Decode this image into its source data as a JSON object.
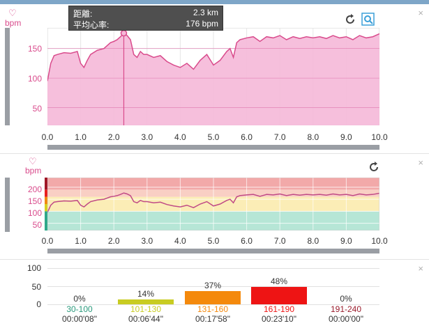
{
  "tooltip": {
    "distance_label": "距離:",
    "distance_value": "2.3 km",
    "hr_label": "平均心率:",
    "hr_value": "176 bpm"
  },
  "panel1": {
    "heart_icon": "heart-outline-icon",
    "unit": "bpm",
    "reset_icon": "rotate-reset-icon",
    "zoom_icon": "zoom-search-icon",
    "close": "×",
    "yticks": [
      "150",
      "100",
      "50"
    ],
    "xticks": [
      "0.0",
      "1.0",
      "2.0",
      "3.0",
      "4.0",
      "5.0",
      "6.0",
      "7.0",
      "8.0",
      "9.0",
      "10.0"
    ],
    "line_color": "#d94b8c",
    "fill_color": "#f5b8d8"
  },
  "panel2": {
    "heart_icon": "heart-outline-icon",
    "unit": "bpm",
    "reset_icon": "rotate-reset-icon",
    "close": "×",
    "yticks": [
      "200",
      "150",
      "100",
      "50"
    ],
    "xticks": [
      "0.0",
      "1.0",
      "2.0",
      "3.0",
      "4.0",
      "5.0",
      "6.0",
      "7.0",
      "8.0",
      "9.0",
      "10.0"
    ],
    "zone_colors": [
      "#b6e6d6",
      "#fbedb6",
      "#f9cfc4",
      "#f2a9a9"
    ]
  },
  "panel3": {
    "close": "×",
    "yticks": [
      "100",
      "50",
      "0"
    ],
    "zones": [
      {
        "range": "30-100",
        "percent": "0%",
        "time": "00:00'08\"",
        "pct_value": 0,
        "color": "#2a9a7c"
      },
      {
        "range": "101-130",
        "percent": "14%",
        "time": "00:06'44\"",
        "pct_value": 14,
        "color": "#c8cc22"
      },
      {
        "range": "131-160",
        "percent": "37%",
        "time": "00:17'58\"",
        "pct_value": 37,
        "color": "#f4890c"
      },
      {
        "range": "161-190",
        "percent": "48%",
        "time": "00:23'10\"",
        "pct_value": 48,
        "color": "#ee1414"
      },
      {
        "range": "191-240",
        "percent": "0%",
        "time": "00:00'00\"",
        "pct_value": 0,
        "color": "#9a1c2c"
      }
    ]
  },
  "chart_data": [
    {
      "type": "area",
      "xlabel": "",
      "ylabel": "bpm",
      "xlim": [
        0,
        10
      ],
      "ylim": [
        20,
        185
      ],
      "grid": true,
      "cursor_x": 2.3,
      "cursor_y": 176,
      "x": [
        0.0,
        0.1,
        0.2,
        0.3,
        0.5,
        0.7,
        0.9,
        1.0,
        1.1,
        1.2,
        1.3,
        1.5,
        1.7,
        1.9,
        2.0,
        2.1,
        2.2,
        2.3,
        2.4,
        2.5,
        2.6,
        2.7,
        2.8,
        2.9,
        3.0,
        3.2,
        3.4,
        3.6,
        3.8,
        4.0,
        4.2,
        4.4,
        4.6,
        4.8,
        5.0,
        5.2,
        5.4,
        5.5,
        5.6,
        5.7,
        5.8,
        6.0,
        6.2,
        6.4,
        6.6,
        6.8,
        7.0,
        7.2,
        7.4,
        7.6,
        7.8,
        8.0,
        8.2,
        8.4,
        8.6,
        8.8,
        9.0,
        9.2,
        9.4,
        9.6,
        9.8,
        10.0
      ],
      "y": [
        95,
        125,
        138,
        140,
        143,
        142,
        145,
        125,
        118,
        130,
        140,
        147,
        150,
        160,
        162,
        165,
        170,
        176,
        172,
        165,
        140,
        135,
        145,
        140,
        140,
        135,
        138,
        128,
        122,
        118,
        125,
        115,
        130,
        140,
        122,
        130,
        145,
        150,
        135,
        160,
        165,
        168,
        170,
        162,
        170,
        168,
        172,
        165,
        170,
        167,
        170,
        168,
        170,
        167,
        172,
        168,
        170,
        165,
        172,
        168,
        170,
        175
      ]
    },
    {
      "type": "line",
      "xlabel": "",
      "ylabel": "bpm",
      "xlim": [
        0,
        10
      ],
      "ylim": [
        20,
        240
      ],
      "grid": true,
      "x": [
        0.0,
        0.1,
        0.2,
        0.3,
        0.5,
        0.7,
        0.9,
        1.0,
        1.1,
        1.2,
        1.3,
        1.5,
        1.7,
        1.9,
        2.0,
        2.1,
        2.2,
        2.3,
        2.4,
        2.5,
        2.6,
        2.7,
        2.8,
        2.9,
        3.0,
        3.2,
        3.4,
        3.6,
        3.8,
        4.0,
        4.2,
        4.4,
        4.6,
        4.8,
        5.0,
        5.2,
        5.4,
        5.5,
        5.6,
        5.7,
        5.8,
        6.0,
        6.2,
        6.4,
        6.6,
        6.8,
        7.0,
        7.2,
        7.4,
        7.6,
        7.8,
        8.0,
        8.2,
        8.4,
        8.6,
        8.8,
        9.0,
        9.2,
        9.4,
        9.6,
        9.8,
        10.0
      ],
      "y": [
        95,
        125,
        138,
        140,
        143,
        142,
        145,
        125,
        118,
        130,
        140,
        147,
        150,
        160,
        162,
        165,
        170,
        176,
        172,
        165,
        140,
        135,
        145,
        140,
        140,
        135,
        138,
        128,
        122,
        118,
        125,
        115,
        130,
        140,
        122,
        130,
        145,
        150,
        135,
        160,
        165,
        168,
        170,
        162,
        170,
        168,
        172,
        165,
        170,
        167,
        170,
        168,
        170,
        167,
        172,
        168,
        170,
        165,
        172,
        168,
        170,
        175
      ],
      "zones": [
        [
          30,
          100
        ],
        [
          101,
          130
        ],
        [
          131,
          160
        ],
        [
          161,
          190
        ],
        [
          191,
          240
        ]
      ]
    },
    {
      "type": "bar",
      "categories": [
        "30-100",
        "101-130",
        "131-160",
        "161-190",
        "191-240"
      ],
      "values": [
        0,
        14,
        37,
        48,
        0
      ],
      "ylim": [
        0,
        100
      ]
    }
  ]
}
